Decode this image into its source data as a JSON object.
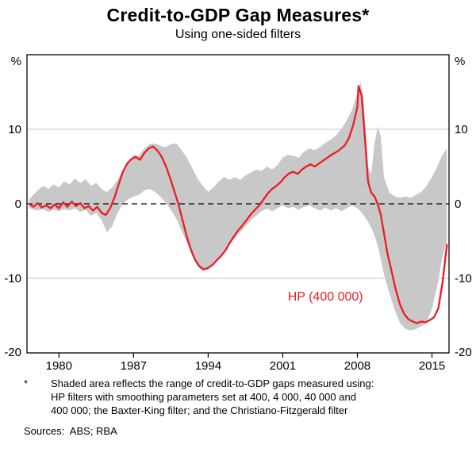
{
  "title": "Credit-to-GDP Gap Measures*",
  "subtitle": "Using one-sided filters",
  "footnote": {
    "marker": "*",
    "lines": [
      "Shaded area reflects the range of credit-to-GDP gaps measured using:",
      "HP filters with smoothing parameters set at 400, 4 000, 40 000 and",
      "400 000; the Baxter-King filter; and the Christiano-Fitzgerald filter"
    ]
  },
  "sources": "Sources:  ABS; RBA",
  "colors": {
    "line": "#ed1c24",
    "band": "#c8c8c8",
    "gridline": "#c9d3da",
    "zero_line": "#000000",
    "axis": "#000000"
  },
  "chart_data": {
    "type": "area",
    "title": "Credit-to-GDP Gap Measures*",
    "subtitle": "Using one-sided filters",
    "unit_label": "%",
    "ylim": [
      -20,
      20
    ],
    "yticks": [
      10,
      0,
      -10,
      -20
    ],
    "gridlines": [
      10,
      -10
    ],
    "zero_line": 0,
    "xlim": [
      1977,
      2016.6
    ],
    "xticks": [
      1980,
      1987,
      1994,
      2001,
      2008,
      2015
    ],
    "legend_position": "annotation inside plot",
    "grid": "horizontal only",
    "annotation": {
      "text": "HP (400 000)",
      "x": 2005,
      "y": -13,
      "color": "#ed1c24"
    },
    "series": [
      {
        "name": "Range of credit-to-GDP gap measures (shaded band)",
        "type": "band",
        "color": "#c8c8c8",
        "x": [
          1977.2,
          1978,
          1978.5,
          1979,
          1979.5,
          1980,
          1980.5,
          1981,
          1981.5,
          1982,
          1982.5,
          1983,
          1983.5,
          1984,
          1984.5,
          1985,
          1985.5,
          1986,
          1986.5,
          1987,
          1987.5,
          1988,
          1988.5,
          1989,
          1989.5,
          1990,
          1990.5,
          1991,
          1991.5,
          1992,
          1992.5,
          1993,
          1993.5,
          1994,
          1994.5,
          1995,
          1995.5,
          1996,
          1996.5,
          1997,
          1997.5,
          1998,
          1998.5,
          1999,
          1999.5,
          2000,
          2000.5,
          2001,
          2001.5,
          2002,
          2002.5,
          2003,
          2003.5,
          2004,
          2004.5,
          2005,
          2005.5,
          2006,
          2006.5,
          2007,
          2007.5,
          2008,
          2008.3,
          2008.6,
          2009,
          2009.3,
          2009.6,
          2009.9,
          2010.2,
          2010.5,
          2011,
          2011.5,
          2012,
          2012.5,
          2013,
          2013.5,
          2014,
          2014.5,
          2015,
          2015.5,
          2016,
          2016.4
        ],
        "upper": [
          0.6,
          1.8,
          2.4,
          2.0,
          2.6,
          2.2,
          3.0,
          2.6,
          3.4,
          2.8,
          3.3,
          2.4,
          2.8,
          2.0,
          1.6,
          2.2,
          3.2,
          4.6,
          5.6,
          6.6,
          6.4,
          7.4,
          8.0,
          8.1,
          7.8,
          7.6,
          8.0,
          8.1,
          7.2,
          6.2,
          4.8,
          3.4,
          2.4,
          1.6,
          2.2,
          3.0,
          3.6,
          3.2,
          3.6,
          3.2,
          3.8,
          4.2,
          4.6,
          4.4,
          5.0,
          4.6,
          5.2,
          6.2,
          6.6,
          6.4,
          6.2,
          7.0,
          7.4,
          7.2,
          7.6,
          8.2,
          8.6,
          9.2,
          10.0,
          11.2,
          12.6,
          14.8,
          16.4,
          14.0,
          5.0,
          4.0,
          8.0,
          10.4,
          9.0,
          3.5,
          1.5,
          1.0,
          0.8,
          1.0,
          0.8,
          1.2,
          1.6,
          2.4,
          3.6,
          5.0,
          6.6,
          7.4
        ],
        "lower": [
          -0.6,
          -0.9,
          -0.7,
          -1.1,
          -0.8,
          -1.0,
          -0.7,
          -0.9,
          -0.6,
          -1.1,
          -0.8,
          -1.6,
          -1.2,
          -2.2,
          -3.8,
          -3.0,
          -1.2,
          0.0,
          0.6,
          1.0,
          1.2,
          1.8,
          2.0,
          1.6,
          1.0,
          0.2,
          -0.8,
          -2.0,
          -3.6,
          -5.2,
          -7.0,
          -8.4,
          -9.0,
          -8.8,
          -8.2,
          -7.2,
          -6.4,
          -5.4,
          -4.6,
          -3.8,
          -3.0,
          -2.2,
          -1.6,
          -1.0,
          -0.6,
          -1.0,
          -0.6,
          -0.2,
          -0.6,
          -0.4,
          -0.8,
          -0.4,
          -0.2,
          -0.6,
          -0.9,
          -0.5,
          -0.9,
          -0.6,
          -1.0,
          -0.6,
          -0.2,
          -0.6,
          -1.0,
          -1.6,
          -2.4,
          -3.2,
          -4.2,
          -5.6,
          -7.4,
          -9.5,
          -12.0,
          -14.2,
          -16.0,
          -16.8,
          -17.0,
          -16.8,
          -16.4,
          -16.0,
          -14.0,
          -11.0,
          -7.0,
          -5.0
        ]
      },
      {
        "name": "HP (400 000)",
        "type": "line",
        "color": "#ed1c24",
        "x": [
          1977.2,
          1977.6,
          1978,
          1978.4,
          1978.8,
          1979.2,
          1979.6,
          1980,
          1980.4,
          1980.8,
          1981.2,
          1981.6,
          1982,
          1982.4,
          1982.8,
          1983.2,
          1983.6,
          1984,
          1984.4,
          1984.8,
          1985.2,
          1985.6,
          1986,
          1986.4,
          1986.8,
          1987.2,
          1987.6,
          1988,
          1988.4,
          1988.8,
          1989.2,
          1989.6,
          1990,
          1990.4,
          1990.8,
          1991.2,
          1991.6,
          1992,
          1992.4,
          1992.8,
          1993.2,
          1993.6,
          1994,
          1994.4,
          1994.8,
          1995.2,
          1995.6,
          1996,
          1996.4,
          1996.8,
          1997.2,
          1997.6,
          1998,
          1998.4,
          1998.8,
          1999.2,
          1999.6,
          2000,
          2000.4,
          2000.8,
          2001.2,
          2001.6,
          2002,
          2002.4,
          2002.8,
          2003.2,
          2003.6,
          2004,
          2004.4,
          2005,
          2005.6,
          2006.2,
          2006.8,
          2007.2,
          2007.6,
          2008,
          2008.1,
          2008.4,
          2008.7,
          2009,
          2009.3,
          2009.6,
          2009.9,
          2010.2,
          2010.5,
          2010.8,
          2011.2,
          2011.6,
          2012,
          2012.4,
          2012.8,
          2013.2,
          2013.6,
          2014,
          2014.4,
          2014.8,
          2015.2,
          2015.6,
          2016,
          2016.4
        ],
        "values": [
          0,
          -0.4,
          0.1,
          -0.5,
          -0.2,
          -0.6,
          -0.1,
          -0.6,
          0.2,
          -0.4,
          0.3,
          -0.3,
          0.1,
          -0.6,
          -0.3,
          -0.9,
          -0.4,
          -1.2,
          -1.5,
          -0.6,
          0.8,
          2.6,
          4.3,
          5.4,
          6,
          6.3,
          5.9,
          6.8,
          7.4,
          7.7,
          7.2,
          6.4,
          5.2,
          3.6,
          1.8,
          0,
          -2.2,
          -4.4,
          -6.2,
          -7.6,
          -8.4,
          -8.8,
          -8.6,
          -8.2,
          -7.6,
          -7,
          -6.3,
          -5.3,
          -4.4,
          -3.6,
          -2.9,
          -2.2,
          -1.4,
          -0.8,
          -0.2,
          0.6,
          1.4,
          2,
          2.4,
          2.9,
          3.6,
          4.1,
          4.3,
          4,
          4.6,
          5,
          5.3,
          5,
          5.4,
          6,
          6.6,
          7.1,
          7.8,
          8.8,
          10.5,
          13,
          15.8,
          14.5,
          9,
          3,
          1.5,
          1,
          0,
          -1.5,
          -4,
          -6.5,
          -9,
          -11.5,
          -13.5,
          -14.8,
          -15.5,
          -15.8,
          -16,
          -15.8,
          -15.9,
          -15.6,
          -15.2,
          -14,
          -10.5,
          -5.5
        ]
      }
    ]
  }
}
